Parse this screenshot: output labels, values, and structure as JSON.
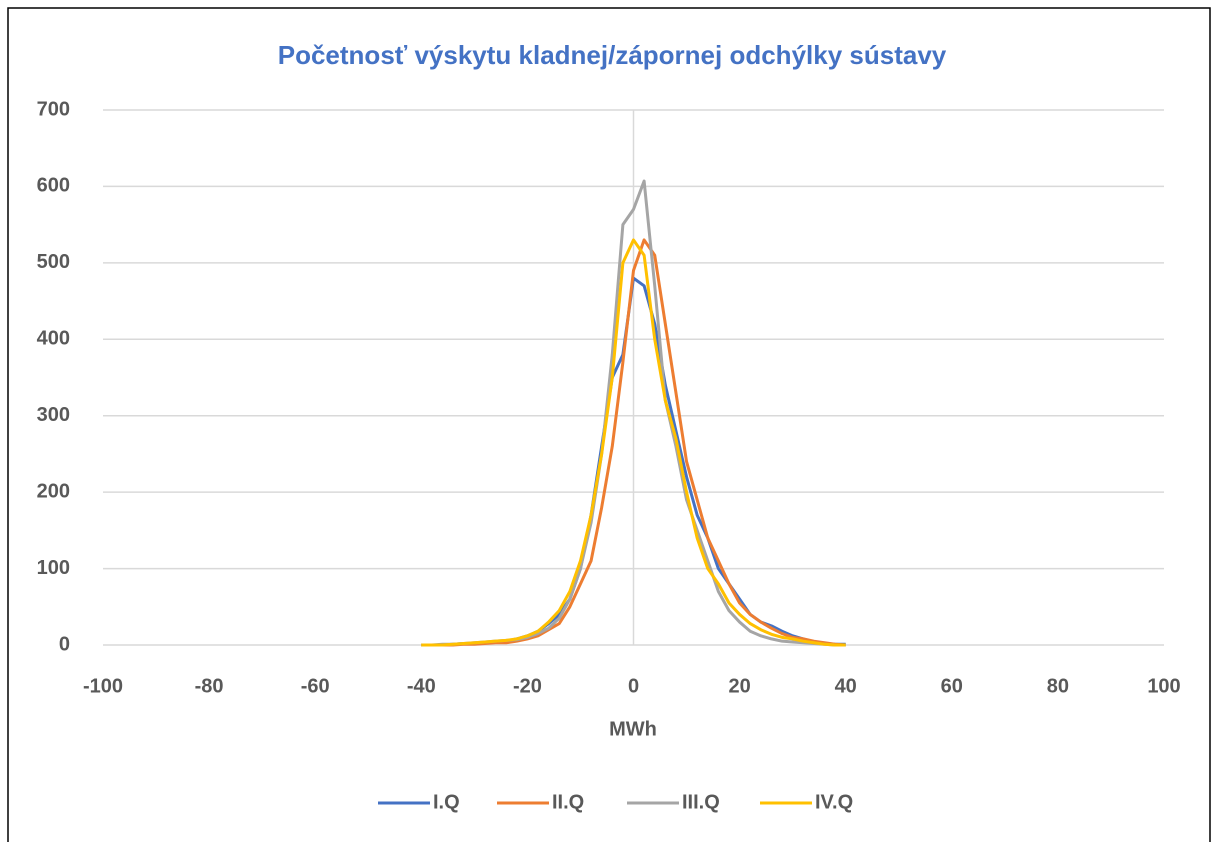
{
  "chart_data": {
    "type": "line",
    "title": "Početnosť výskytu kladnej/zápornej odchýlky sústavy",
    "x_label": "MWh",
    "x": [
      -40,
      -38,
      -36,
      -34,
      -32,
      -30,
      -28,
      -26,
      -24,
      -22,
      -20,
      -18,
      -16,
      -14,
      -12,
      -10,
      -8,
      -6,
      -4,
      -2,
      0,
      2,
      4,
      6,
      8,
      10,
      12,
      14,
      16,
      18,
      20,
      22,
      24,
      26,
      28,
      30,
      32,
      34,
      36,
      38,
      40
    ],
    "series": [
      {
        "name": "I.Q",
        "color": "#4472c4",
        "values": [
          0,
          0,
          0,
          1,
          2,
          2,
          3,
          4,
          5,
          8,
          12,
          18,
          28,
          40,
          60,
          100,
          170,
          260,
          350,
          380,
          480,
          470,
          420,
          340,
          280,
          220,
          170,
          140,
          100,
          80,
          60,
          40,
          30,
          25,
          18,
          12,
          8,
          4,
          2,
          1,
          1
        ]
      },
      {
        "name": "II.Q",
        "color": "#ed7d31",
        "values": [
          0,
          0,
          0,
          0,
          1,
          1,
          2,
          3,
          3,
          5,
          8,
          12,
          20,
          28,
          50,
          80,
          110,
          180,
          260,
          370,
          490,
          530,
          510,
          420,
          330,
          240,
          190,
          140,
          110,
          80,
          55,
          40,
          30,
          22,
          15,
          10,
          8,
          5,
          3,
          1,
          0
        ]
      },
      {
        "name": "III.Q",
        "color": "#a5a5a5",
        "values": [
          0,
          0,
          1,
          1,
          2,
          3,
          4,
          5,
          6,
          7,
          10,
          15,
          22,
          35,
          60,
          100,
          160,
          250,
          380,
          550,
          570,
          607,
          470,
          320,
          260,
          190,
          150,
          110,
          70,
          45,
          30,
          18,
          12,
          8,
          5,
          4,
          3,
          2,
          1,
          0,
          0
        ]
      },
      {
        "name": "IV.Q",
        "color": "#ffc000",
        "values": [
          0,
          0,
          0,
          1,
          2,
          3,
          4,
          5,
          6,
          8,
          12,
          18,
          30,
          45,
          70,
          110,
          170,
          250,
          350,
          500,
          530,
          510,
          400,
          320,
          270,
          200,
          140,
          100,
          80,
          55,
          40,
          28,
          20,
          14,
          10,
          8,
          5,
          3,
          1,
          0,
          0
        ]
      }
    ],
    "xlim": [
      -100,
      100
    ],
    "xticks": [
      -100,
      -80,
      -60,
      -40,
      -20,
      0,
      20,
      40,
      60,
      80,
      100
    ],
    "ylim": [
      0,
      700
    ],
    "yticks": [
      0,
      100,
      200,
      300,
      400,
      500,
      600,
      700
    ],
    "grid": true,
    "legend": "bottom"
  }
}
